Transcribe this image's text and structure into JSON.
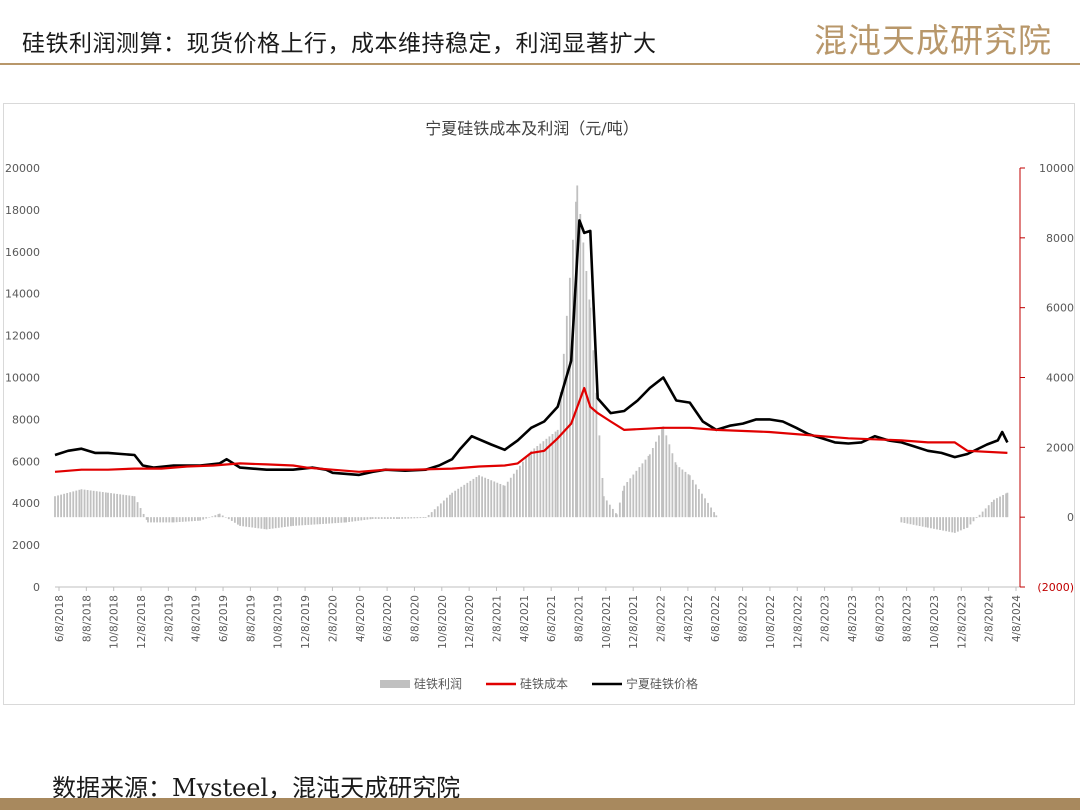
{
  "header": {
    "title": "硅铁利润测算：现货价格上行，成本维持稳定，利润显著扩大",
    "logo_text": "混沌天成研究院"
  },
  "footer": {
    "source": "数据来源：Mysteel，混沌天成研究院"
  },
  "colors": {
    "profit": "#c0c0c0",
    "cost": "#e00000",
    "price": "#000000",
    "right_axis": "#c00000",
    "brand": "#b8976a"
  },
  "chart_data": {
    "type": "line",
    "title": "宁夏硅铁成本及利润（元/吨）",
    "legend": {
      "placement": "bottom",
      "labels": [
        "硅铁利润",
        "硅铁成本",
        "宁夏硅铁价格"
      ]
    },
    "grid": false,
    "x_tick_labels": [
      "6/8/2018",
      "8/8/2018",
      "10/8/2018",
      "12/8/2018",
      "2/8/2019",
      "4/8/2019",
      "6/8/2019",
      "8/8/2019",
      "10/8/2019",
      "12/8/2019",
      "2/8/2020",
      "4/8/2020",
      "6/8/2020",
      "8/8/2020",
      "10/8/2020",
      "12/8/2020",
      "2/8/2021",
      "4/8/2021",
      "6/8/2021",
      "8/8/2021",
      "10/8/2021",
      "12/8/2021",
      "2/8/2022",
      "4/8/2022",
      "6/8/2022",
      "8/8/2022",
      "10/8/2022",
      "12/8/2022",
      "2/8/2023",
      "4/8/2023",
      "6/8/2023",
      "8/8/2023",
      "10/8/2023",
      "12/8/2023",
      "2/8/2024",
      "4/8/2024"
    ],
    "x_range": [
      "2018-06-01",
      "2024-06-30"
    ],
    "y_left": {
      "range": [
        0,
        20000
      ],
      "ticks": [
        "0",
        "2000",
        "4000",
        "6000",
        "8000",
        "10000",
        "12000",
        "14000",
        "16000",
        "18000",
        "20000"
      ]
    },
    "y_right": {
      "range": [
        -2000,
        10000
      ],
      "ticks": [
        "(2000)",
        "0",
        "2000",
        "4000",
        "6000",
        "8000",
        "10000"
      ]
    },
    "series": [
      {
        "name": "宁夏硅铁价格",
        "axis": "left",
        "kind": "line",
        "points": [
          [
            "2018-06-01",
            6300
          ],
          [
            "2018-07-01",
            6500
          ],
          [
            "2018-08-01",
            6600
          ],
          [
            "2018-09-01",
            6400
          ],
          [
            "2018-10-01",
            6400
          ],
          [
            "2018-11-01",
            6350
          ],
          [
            "2018-12-01",
            6300
          ],
          [
            "2018-12-20",
            5800
          ],
          [
            "2019-01-15",
            5700
          ],
          [
            "2019-03-01",
            5800
          ],
          [
            "2019-05-01",
            5800
          ],
          [
            "2019-06-15",
            5900
          ],
          [
            "2019-07-01",
            6100
          ],
          [
            "2019-08-01",
            5700
          ],
          [
            "2019-10-01",
            5600
          ],
          [
            "2019-12-01",
            5600
          ],
          [
            "2020-01-15",
            5700
          ],
          [
            "2020-02-15",
            5600
          ],
          [
            "2020-03-01",
            5450
          ],
          [
            "2020-05-01",
            5350
          ],
          [
            "2020-06-01",
            5500
          ],
          [
            "2020-07-01",
            5600
          ],
          [
            "2020-08-15",
            5550
          ],
          [
            "2020-10-01",
            5600
          ],
          [
            "2020-11-01",
            5800
          ],
          [
            "2020-12-01",
            6100
          ],
          [
            "2020-12-20",
            6600
          ],
          [
            "2021-01-15",
            7200
          ],
          [
            "2021-03-01",
            6800
          ],
          [
            "2021-04-01",
            6550
          ],
          [
            "2021-05-01",
            7000
          ],
          [
            "2021-06-01",
            7600
          ],
          [
            "2021-07-01",
            7900
          ],
          [
            "2021-08-01",
            8600
          ],
          [
            "2021-09-01",
            10800
          ],
          [
            "2021-09-20",
            17500
          ],
          [
            "2021-10-01",
            16900
          ],
          [
            "2021-10-15",
            17000
          ],
          [
            "2021-11-01",
            9000
          ],
          [
            "2021-12-01",
            8300
          ],
          [
            "2022-01-01",
            8400
          ],
          [
            "2022-02-01",
            8900
          ],
          [
            "2022-03-01",
            9500
          ],
          [
            "2022-04-01",
            10000
          ],
          [
            "2022-05-01",
            8900
          ],
          [
            "2022-06-01",
            8800
          ],
          [
            "2022-07-01",
            7900
          ],
          [
            "2022-08-01",
            7500
          ],
          [
            "2022-09-01",
            7700
          ],
          [
            "2022-10-01",
            7800
          ],
          [
            "2022-11-01",
            8000
          ],
          [
            "2022-12-01",
            8000
          ],
          [
            "2023-01-01",
            7900
          ],
          [
            "2023-02-01",
            7600
          ],
          [
            "2023-03-01",
            7300
          ],
          [
            "2023-04-01",
            7100
          ],
          [
            "2023-05-01",
            6900
          ],
          [
            "2023-06-01",
            6850
          ],
          [
            "2023-07-01",
            6900
          ],
          [
            "2023-08-01",
            7200
          ],
          [
            "2023-09-01",
            7000
          ],
          [
            "2023-10-01",
            6900
          ],
          [
            "2023-11-01",
            6700
          ],
          [
            "2023-12-01",
            6500
          ],
          [
            "2024-01-01",
            6400
          ],
          [
            "2024-02-01",
            6200
          ],
          [
            "2024-03-01",
            6350
          ],
          [
            "2024-04-15",
            6800
          ],
          [
            "2024-05-10",
            7000
          ],
          [
            "2024-05-20",
            7400
          ],
          [
            "2024-06-01",
            6900
          ]
        ]
      },
      {
        "name": "硅铁成本",
        "axis": "left",
        "kind": "line",
        "points": [
          [
            "2018-06-01",
            5500
          ],
          [
            "2018-08-01",
            5600
          ],
          [
            "2018-10-01",
            5600
          ],
          [
            "2018-12-01",
            5650
          ],
          [
            "2019-02-01",
            5650
          ],
          [
            "2019-04-01",
            5750
          ],
          [
            "2019-06-01",
            5800
          ],
          [
            "2019-08-01",
            5900
          ],
          [
            "2019-10-01",
            5850
          ],
          [
            "2019-12-01",
            5800
          ],
          [
            "2020-01-01",
            5700
          ],
          [
            "2020-03-01",
            5600
          ],
          [
            "2020-05-01",
            5500
          ],
          [
            "2020-07-01",
            5600
          ],
          [
            "2020-09-01",
            5600
          ],
          [
            "2020-12-01",
            5650
          ],
          [
            "2021-02-01",
            5750
          ],
          [
            "2021-04-01",
            5800
          ],
          [
            "2021-05-01",
            5900
          ],
          [
            "2021-06-01",
            6400
          ],
          [
            "2021-07-01",
            6500
          ],
          [
            "2021-08-01",
            7100
          ],
          [
            "2021-09-01",
            7800
          ],
          [
            "2021-10-01",
            9500
          ],
          [
            "2021-10-15",
            8600
          ],
          [
            "2021-11-01",
            8300
          ],
          [
            "2021-12-01",
            7900
          ],
          [
            "2022-01-01",
            7500
          ],
          [
            "2022-04-01",
            7600
          ],
          [
            "2022-06-01",
            7600
          ],
          [
            "2022-08-01",
            7500
          ],
          [
            "2022-12-01",
            7400
          ],
          [
            "2023-06-01",
            7100
          ],
          [
            "2023-10-01",
            7000
          ],
          [
            "2023-12-01",
            6900
          ],
          [
            "2024-02-01",
            6900
          ],
          [
            "2024-03-01",
            6500
          ],
          [
            "2024-06-01",
            6400
          ]
        ]
      },
      {
        "name": "硅铁利润",
        "axis": "right",
        "kind": "bar",
        "points": [
          [
            "2018-06-01",
            600
          ],
          [
            "2018-08-01",
            800
          ],
          [
            "2018-10-01",
            700
          ],
          [
            "2018-12-01",
            600
          ],
          [
            "2019-01-01",
            -150
          ],
          [
            "2019-03-01",
            -150
          ],
          [
            "2019-05-01",
            -100
          ],
          [
            "2019-06-15",
            100
          ],
          [
            "2019-08-01",
            -250
          ],
          [
            "2019-10-01",
            -350
          ],
          [
            "2019-12-01",
            -250
          ],
          [
            "2020-02-01",
            -200
          ],
          [
            "2020-04-01",
            -150
          ],
          [
            "2020-06-01",
            -50
          ],
          [
            "2020-08-01",
            -50
          ],
          [
            "2020-10-01",
            -20
          ],
          [
            "2020-12-01",
            700
          ],
          [
            "2021-02-01",
            1200
          ],
          [
            "2021-04-01",
            900
          ],
          [
            "2021-06-01",
            1900
          ],
          [
            "2021-08-01",
            2500
          ],
          [
            "2021-09-15",
            9500
          ],
          [
            "2021-10-15",
            6000
          ],
          [
            "2021-11-15",
            600
          ],
          [
            "2021-12-15",
            80
          ],
          [
            "2022-01-01",
            900
          ],
          [
            "2022-03-01",
            1800
          ],
          [
            "2022-04-01",
            2600
          ],
          [
            "2022-05-01",
            1500
          ],
          [
            "2022-06-01",
            1200
          ],
          [
            "2022-08-01",
            50
          ],
          [
            "2023-10-01",
            -150
          ],
          [
            "2023-12-01",
            -300
          ],
          [
            "2024-02-01",
            -450
          ],
          [
            "2024-03-01",
            -300
          ],
          [
            "2024-05-01",
            500
          ],
          [
            "2024-06-01",
            700
          ]
        ]
      }
    ]
  }
}
